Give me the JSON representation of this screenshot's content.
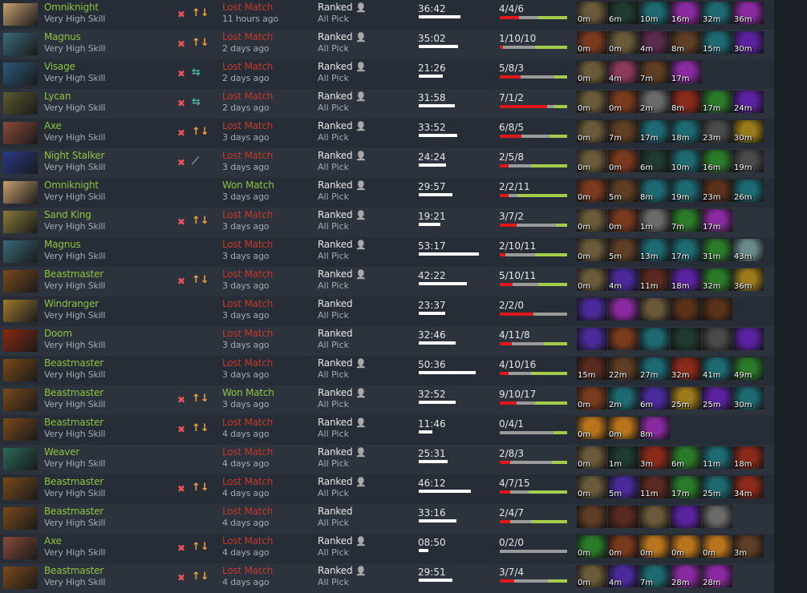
{
  "colors": {
    "hero_name": "#8fc43e",
    "lost": "#c2392b",
    "won": "#8fc43e",
    "kills": "#e0161b",
    "deaths": "#9a9a9a",
    "assists": "#a3cc4a"
  },
  "matches": [
    {
      "hero": "Omniknight",
      "skill": "Very High Skill",
      "role": true,
      "lane": "arrows",
      "result": "Lost Match",
      "won": false,
      "ago": "11 hours ago",
      "lobby": "Ranked",
      "party": true,
      "mode": "All Pick",
      "duration": "36:42",
      "kda": "4/4/6",
      "items": [
        [
          "tp-scroll",
          "0m"
        ],
        [
          "magic-stick",
          "6m"
        ],
        [
          "teal",
          "10m"
        ],
        [
          "orb",
          "16m"
        ],
        [
          "teal",
          "32m"
        ],
        [
          "orb",
          "36m"
        ]
      ]
    },
    {
      "hero": "Magnus",
      "skill": "Very High Skill",
      "role": true,
      "lane": "arrows",
      "result": "Lost Match",
      "won": false,
      "ago": "2 days ago",
      "lobby": "Ranked",
      "party": true,
      "mode": "All Pick",
      "duration": "35:02",
      "kda": "1/10/10",
      "items": [
        [
          "shield",
          "0m"
        ],
        [
          "tp-scroll",
          "0m"
        ],
        [
          "staff",
          "4m"
        ],
        [
          "boots",
          "8m"
        ],
        [
          "teal",
          "15m"
        ],
        [
          "purple-blade",
          "30m"
        ]
      ]
    },
    {
      "hero": "Visage",
      "skill": "Very High Skill",
      "role": true,
      "lane": "swap",
      "result": "Lost Match",
      "won": false,
      "ago": "2 days ago",
      "lobby": "Ranked",
      "party": true,
      "mode": "All Pick",
      "duration": "21:26",
      "kda": "5/8/3",
      "items": [
        [
          "tp-scroll",
          "0m"
        ],
        [
          "pink",
          "4m"
        ],
        [
          "boots",
          "7m"
        ],
        [
          "orb",
          "17m"
        ]
      ]
    },
    {
      "hero": "Lycan",
      "skill": "Very High Skill",
      "role": true,
      "lane": "swap",
      "result": "Lost Match",
      "won": false,
      "ago": "2 days ago",
      "lobby": "Ranked",
      "party": true,
      "mode": "All Pick",
      "duration": "31:58",
      "kda": "7/1/2",
      "items": [
        [
          "tp-scroll",
          "0m"
        ],
        [
          "shield",
          "0m"
        ],
        [
          "axe",
          "2m"
        ],
        [
          "red",
          "8m"
        ],
        [
          "green",
          "17m"
        ],
        [
          "purple-blade",
          "24m"
        ]
      ]
    },
    {
      "hero": "Axe",
      "skill": "Very High Skill",
      "role": true,
      "lane": "arrows",
      "result": "Lost Match",
      "won": false,
      "ago": "3 days ago",
      "lobby": "Ranked",
      "party": true,
      "mode": "All Pick",
      "duration": "33:52",
      "kda": "6/8/5",
      "items": [
        [
          "tp-scroll",
          "0m"
        ],
        [
          "boots",
          "7m"
        ],
        [
          "teal",
          "17m"
        ],
        [
          "teal",
          "18m"
        ],
        [
          "gray",
          "23m"
        ],
        [
          "gold",
          "30m"
        ]
      ]
    },
    {
      "hero": "Night Stalker",
      "skill": "Very High Skill",
      "role": true,
      "lane": "link",
      "result": "Lost Match",
      "won": false,
      "ago": "3 days ago",
      "lobby": "Ranked",
      "party": true,
      "mode": "All Pick",
      "duration": "24:24",
      "kda": "2/5/8",
      "items": [
        [
          "tp-scroll",
          "0m"
        ],
        [
          "shield",
          "0m"
        ],
        [
          "magic-stick",
          "6m"
        ],
        [
          "teal",
          "10m"
        ],
        [
          "green",
          "16m"
        ],
        [
          "gray",
          "19m"
        ]
      ]
    },
    {
      "hero": "Omniknight",
      "skill": "Very High Skill",
      "role": false,
      "lane": "",
      "result": "Won Match",
      "won": true,
      "ago": "3 days ago",
      "lobby": "Ranked",
      "party": true,
      "mode": "All Pick",
      "duration": "29:57",
      "kda": "2/2/11",
      "items": [
        [
          "shield",
          "0m"
        ],
        [
          "boots",
          "5m"
        ],
        [
          "teal",
          "8m"
        ],
        [
          "teal",
          "19m"
        ],
        [
          "cloak",
          "23m"
        ],
        [
          "teal",
          "26m"
        ]
      ]
    },
    {
      "hero": "Sand King",
      "skill": "Very High Skill",
      "role": true,
      "lane": "arrows",
      "result": "Lost Match",
      "won": false,
      "ago": "3 days ago",
      "lobby": "Ranked",
      "party": true,
      "mode": "All Pick",
      "duration": "19:21",
      "kda": "3/7/2",
      "items": [
        [
          "tp-scroll",
          "0m"
        ],
        [
          "shield",
          "0m"
        ],
        [
          "axe",
          "1m"
        ],
        [
          "green",
          "7m"
        ],
        [
          "orb",
          "17m"
        ]
      ]
    },
    {
      "hero": "Magnus",
      "skill": "Very High Skill",
      "role": false,
      "lane": "",
      "result": "Lost Match",
      "won": false,
      "ago": "3 days ago",
      "lobby": "Ranked",
      "party": true,
      "mode": "All Pick",
      "duration": "53:17",
      "kda": "2/10/11",
      "items": [
        [
          "tp-scroll",
          "0m"
        ],
        [
          "boots",
          "5m"
        ],
        [
          "teal",
          "13m"
        ],
        [
          "teal",
          "17m"
        ],
        [
          "green",
          "31m"
        ],
        [
          "white",
          "43m"
        ]
      ]
    },
    {
      "hero": "Beastmaster",
      "skill": "Very High Skill",
      "role": true,
      "lane": "arrows",
      "result": "Lost Match",
      "won": false,
      "ago": "3 days ago",
      "lobby": "Ranked",
      "party": true,
      "mode": "All Pick",
      "duration": "42:22",
      "kda": "5/10/11",
      "items": [
        [
          "tp-scroll",
          "0m"
        ],
        [
          "purple-boots",
          "4m"
        ],
        [
          "helm",
          "11m"
        ],
        [
          "purple-blade",
          "18m"
        ],
        [
          "green",
          "32m"
        ],
        [
          "gold",
          "36m"
        ]
      ]
    },
    {
      "hero": "Windranger",
      "skill": "Very High Skill",
      "role": false,
      "lane": "",
      "result": "Lost Match",
      "won": false,
      "ago": "3 days ago",
      "lobby": "Ranked",
      "party": false,
      "mode": "All Pick",
      "duration": "23:37",
      "kda": "2/2/0",
      "items": [
        [
          "purple-boots",
          ""
        ],
        [
          "orb",
          ""
        ],
        [
          "tp-scroll",
          ""
        ],
        [
          "cloak",
          ""
        ],
        [
          "cloak",
          ""
        ]
      ]
    },
    {
      "hero": "Doom",
      "skill": "Very High Skill",
      "role": false,
      "lane": "",
      "result": "Lost Match",
      "won": false,
      "ago": "3 days ago",
      "lobby": "Ranked",
      "party": false,
      "mode": "All Pick",
      "duration": "32:46",
      "kda": "4/11/8",
      "items": [
        [
          "purple-boots",
          ""
        ],
        [
          "shield",
          ""
        ],
        [
          "teal",
          ""
        ],
        [
          "magic-stick",
          ""
        ],
        [
          "gray",
          ""
        ],
        [
          "purple-blade",
          ""
        ]
      ]
    },
    {
      "hero": "Beastmaster",
      "skill": "Very High Skill",
      "role": false,
      "lane": "",
      "result": "Lost Match",
      "won": false,
      "ago": "3 days ago",
      "lobby": "Ranked",
      "party": true,
      "mode": "All Pick",
      "duration": "50:36",
      "kda": "4/10/16",
      "items": [
        [
          "helm",
          "15m"
        ],
        [
          "boots",
          "22m"
        ],
        [
          "teal",
          "27m"
        ],
        [
          "red",
          "32m"
        ],
        [
          "teal",
          "41m"
        ],
        [
          "green",
          "49m"
        ]
      ]
    },
    {
      "hero": "Beastmaster",
      "skill": "Very High Skill",
      "role": true,
      "lane": "arrows",
      "result": "Won Match",
      "won": true,
      "ago": "3 days ago",
      "lobby": "Ranked",
      "party": true,
      "mode": "All Pick",
      "duration": "32:52",
      "kda": "9/10/17",
      "items": [
        [
          "shield",
          "0m"
        ],
        [
          "teal",
          "2m"
        ],
        [
          "purple-boots",
          "6m"
        ],
        [
          "gold",
          "25m"
        ],
        [
          "purple-blade",
          "25m"
        ],
        [
          "teal",
          "30m"
        ]
      ]
    },
    {
      "hero": "Beastmaster",
      "skill": "Very High Skill",
      "role": true,
      "lane": "arrows",
      "result": "Lost Match",
      "won": false,
      "ago": "4 days ago",
      "lobby": "Ranked",
      "party": true,
      "mode": "All Pick",
      "duration": "11:46",
      "kda": "0/4/1",
      "items": [
        [
          "mango",
          "0m"
        ],
        [
          "mango",
          "0m"
        ],
        [
          "orb",
          "8m"
        ]
      ]
    },
    {
      "hero": "Weaver",
      "skill": "Very High Skill",
      "role": false,
      "lane": "",
      "result": "Lost Match",
      "won": false,
      "ago": "4 days ago",
      "lobby": "Ranked",
      "party": true,
      "mode": "All Pick",
      "duration": "25:31",
      "kda": "2/8/3",
      "items": [
        [
          "tp-scroll",
          "0m"
        ],
        [
          "magic-stick",
          "1m"
        ],
        [
          "red",
          "3m"
        ],
        [
          "green",
          "6m"
        ],
        [
          "teal",
          "11m"
        ],
        [
          "red",
          "18m"
        ]
      ]
    },
    {
      "hero": "Beastmaster",
      "skill": "Very High Skill",
      "role": true,
      "lane": "arrows",
      "result": "Lost Match",
      "won": false,
      "ago": "4 days ago",
      "lobby": "Ranked",
      "party": true,
      "mode": "All Pick",
      "duration": "46:12",
      "kda": "4/7/15",
      "items": [
        [
          "tp-scroll",
          "0m"
        ],
        [
          "purple-boots",
          "5m"
        ],
        [
          "helm",
          "11m"
        ],
        [
          "green",
          "17m"
        ],
        [
          "teal",
          "25m"
        ],
        [
          "red",
          "34m"
        ]
      ]
    },
    {
      "hero": "Beastmaster",
      "skill": "Very High Skill",
      "role": false,
      "lane": "",
      "result": "Lost Match",
      "won": false,
      "ago": "4 days ago",
      "lobby": "Ranked",
      "party": false,
      "mode": "All Pick",
      "duration": "33:16",
      "kda": "2/4/7",
      "items": [
        [
          "boots",
          ""
        ],
        [
          "helm",
          ""
        ],
        [
          "tp-scroll",
          ""
        ],
        [
          "purple-blade",
          ""
        ],
        [
          "axe",
          ""
        ]
      ]
    },
    {
      "hero": "Axe",
      "skill": "Very High Skill",
      "role": true,
      "lane": "arrows",
      "result": "Lost Match",
      "won": false,
      "ago": "4 days ago",
      "lobby": "Ranked",
      "party": true,
      "mode": "All Pick",
      "duration": "08:50",
      "kda": "0/2/0",
      "items": [
        [
          "green",
          "0m"
        ],
        [
          "shield",
          "0m"
        ],
        [
          "mango",
          "0m"
        ],
        [
          "mango",
          "0m"
        ],
        [
          "mango",
          "0m"
        ],
        [
          "boots",
          "3m"
        ]
      ]
    },
    {
      "hero": "Beastmaster",
      "skill": "Very High Skill",
      "role": true,
      "lane": "arrows",
      "result": "Lost Match",
      "won": false,
      "ago": "4 days ago",
      "lobby": "Ranked",
      "party": true,
      "mode": "All Pick",
      "duration": "29:51",
      "kda": "3/7/4",
      "items": [
        [
          "tp-scroll",
          "0m"
        ],
        [
          "purple-boots",
          "4m"
        ],
        [
          "teal",
          "7m"
        ],
        [
          "orb",
          "28m"
        ],
        [
          "orb",
          "28m"
        ]
      ]
    }
  ]
}
